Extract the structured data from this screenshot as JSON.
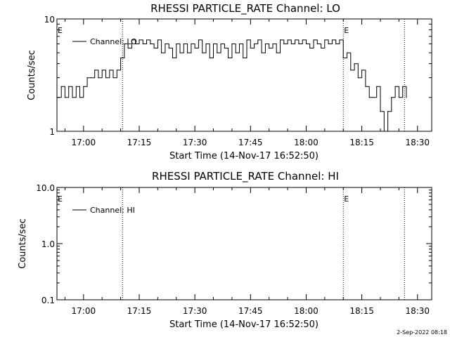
{
  "footer": {
    "timestamp": "2-Sep-2022 08:18"
  },
  "chart_data": [
    {
      "type": "line",
      "title": "RHESSI PARTICLE_RATE Channel: LO",
      "xlabel": "Start Time (14-Nov-17 16:52:50)",
      "ylabel": "Counts/sec",
      "yscale": "log",
      "ylim": [
        1,
        10
      ],
      "xlim": [
        "16:52:50",
        "18:33:50"
      ],
      "x_ticks": [
        "17:00",
        "17:15",
        "17:30",
        "17:45",
        "18:00",
        "18:15",
        "18:30"
      ],
      "y_ticks": [
        "1",
        "10"
      ],
      "legend": {
        "position": "top-left",
        "entries": [
          "Channel: LO"
        ]
      },
      "vlines": [
        "17:10:30",
        "18:10:00",
        "18:26:30"
      ],
      "markers": [
        {
          "label": "E",
          "time": "16:52:50"
        },
        {
          "label": "E",
          "time": "18:10:00"
        }
      ],
      "series": [
        {
          "name": "Channel: LO",
          "x": [
            "16:52:50",
            "16:54:00",
            "16:55:00",
            "16:56:00",
            "16:57:00",
            "16:58:00",
            "16:59:00",
            "17:00:00",
            "17:01:00",
            "17:02:00",
            "17:03:00",
            "17:04:00",
            "17:05:00",
            "17:06:00",
            "17:07:00",
            "17:08:00",
            "17:09:00",
            "17:10:00",
            "17:11:00",
            "17:12:00",
            "17:13:00",
            "17:14:00",
            "17:15:00",
            "17:16:00",
            "17:17:00",
            "17:18:00",
            "17:19:00",
            "17:20:00",
            "17:21:00",
            "17:22:00",
            "17:23:00",
            "17:24:00",
            "17:25:00",
            "17:26:00",
            "17:27:00",
            "17:28:00",
            "17:29:00",
            "17:30:00",
            "17:31:00",
            "17:32:00",
            "17:33:00",
            "17:34:00",
            "17:35:00",
            "17:36:00",
            "17:37:00",
            "17:38:00",
            "17:39:00",
            "17:40:00",
            "17:41:00",
            "17:42:00",
            "17:43:00",
            "17:44:00",
            "17:45:00",
            "17:46:00",
            "17:47:00",
            "17:48:00",
            "17:49:00",
            "17:50:00",
            "17:51:00",
            "17:52:00",
            "17:53:00",
            "17:54:00",
            "17:55:00",
            "17:56:00",
            "17:57:00",
            "17:58:00",
            "17:59:00",
            "18:00:00",
            "18:01:00",
            "18:02:00",
            "18:03:00",
            "18:04:00",
            "18:05:00",
            "18:06:00",
            "18:07:00",
            "18:08:00",
            "18:09:00",
            "18:10:00",
            "18:11:00",
            "18:12:00",
            "18:13:00",
            "18:14:00",
            "18:15:00",
            "18:16:00",
            "18:17:00",
            "18:18:00",
            "18:19:00",
            "18:20:00",
            "18:21:00",
            "18:22:00",
            "18:23:00",
            "18:24:00",
            "18:25:00",
            "18:26:00",
            "18:27:00"
          ],
          "values": [
            2,
            2.5,
            2,
            2.5,
            2,
            2.5,
            2,
            2.5,
            3,
            3,
            3.5,
            3,
            3.5,
            3,
            3.5,
            3,
            3.5,
            4.5,
            6,
            5.5,
            6.5,
            6,
            6.5,
            6,
            6.5,
            6,
            5.5,
            6.5,
            5,
            6,
            5.5,
            4.5,
            6,
            5,
            6,
            5,
            6,
            5.5,
            6.5,
            5,
            6,
            4.5,
            6,
            5,
            6,
            5.5,
            4.5,
            6,
            5,
            6,
            4.5,
            6.5,
            5.5,
            6,
            6.5,
            5,
            6,
            5.5,
            6,
            5,
            6.5,
            6,
            6.5,
            6,
            6.5,
            6,
            6.5,
            6,
            5.5,
            6.5,
            6,
            5.5,
            6.5,
            6,
            6.5,
            6,
            6.5,
            4.5,
            5,
            3.5,
            4,
            3,
            3.5,
            2.5,
            2,
            2,
            2.5,
            1.5,
            1,
            1.5,
            2,
            2.5,
            2,
            2.5,
            2
          ]
        }
      ]
    },
    {
      "type": "line",
      "title": "RHESSI PARTICLE_RATE Channel: HI",
      "xlabel": "Start Time (14-Nov-17 16:52:50)",
      "ylabel": "Counts/sec",
      "yscale": "log",
      "ylim": [
        0.1,
        10
      ],
      "xlim": [
        "16:52:50",
        "18:33:50"
      ],
      "x_ticks": [
        "17:00",
        "17:15",
        "17:30",
        "17:45",
        "18:00",
        "18:15",
        "18:30"
      ],
      "y_ticks": [
        "0.1",
        "1.0",
        "10.0"
      ],
      "legend": {
        "position": "top-left",
        "entries": [
          "Channel: HI"
        ]
      },
      "vlines": [
        "17:10:30",
        "18:10:00",
        "18:26:30"
      ],
      "markers": [
        {
          "label": "E",
          "time": "16:52:50"
        },
        {
          "label": "E",
          "time": "18:10:00"
        }
      ],
      "series": [
        {
          "name": "Channel: HI",
          "x": [],
          "values": []
        }
      ]
    }
  ]
}
